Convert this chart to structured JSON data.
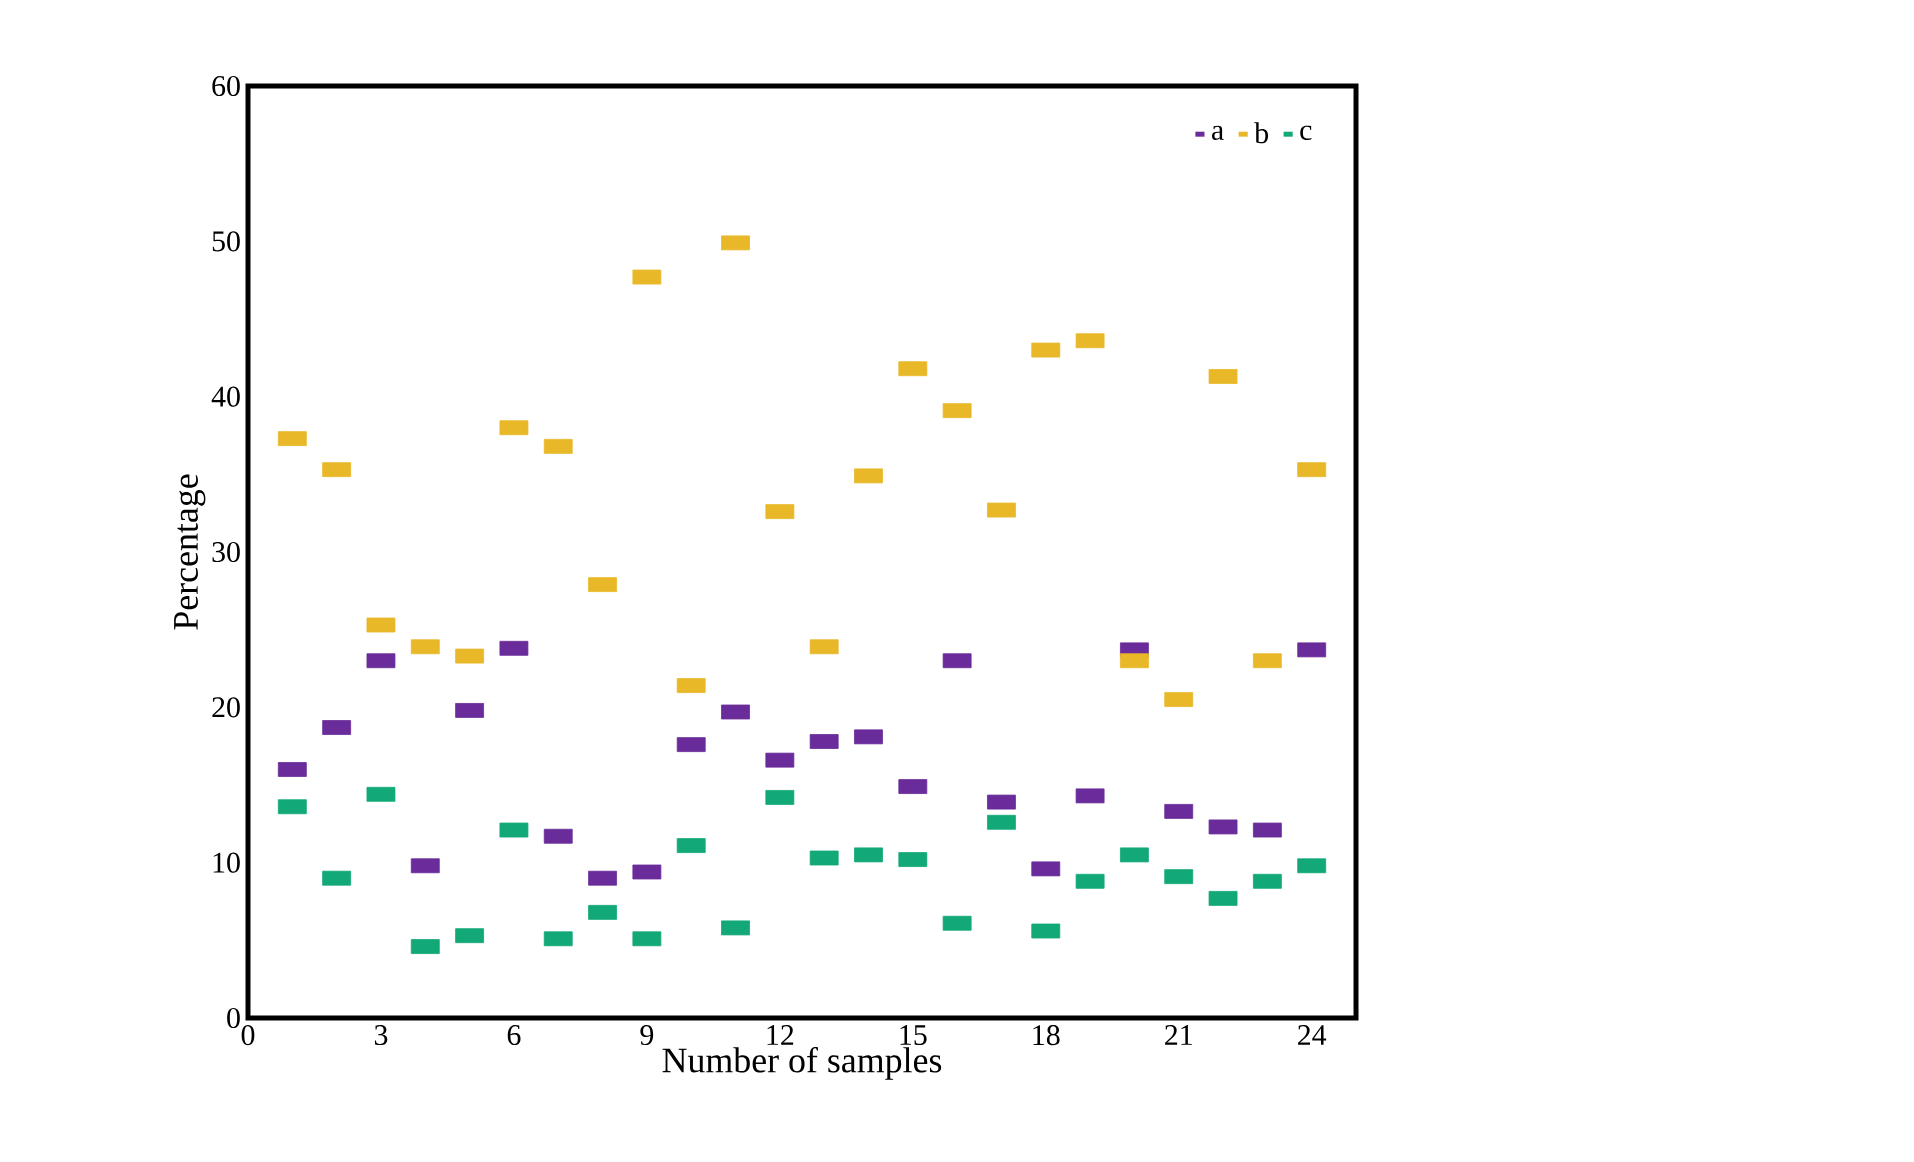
{
  "chart_data": {
    "type": "scatter",
    "xlabel": "Number of samples",
    "ylabel": "Percentage",
    "xlim": [
      0,
      25
    ],
    "xticks": [
      0,
      3,
      6,
      9,
      12,
      15,
      18,
      21,
      24
    ],
    "ylim": [
      0,
      60
    ],
    "yticks": [
      0,
      10,
      20,
      30,
      40,
      50,
      60
    ],
    "legend": "top right",
    "x": [
      1,
      2,
      3,
      4,
      5,
      6,
      7,
      8,
      9,
      10,
      11,
      12,
      13,
      14,
      15,
      16,
      17,
      18,
      19,
      20,
      21,
      22,
      23,
      24
    ],
    "series": [
      {
        "name": "a",
        "color": "#6a2c9a",
        "values": [
          16.0,
          18.7,
          23.0,
          9.8,
          19.8,
          23.8,
          11.7,
          9.0,
          9.4,
          17.6,
          19.7,
          16.6,
          17.8,
          18.1,
          14.9,
          23.0,
          13.9,
          9.6,
          14.3,
          23.7,
          13.3,
          12.3,
          12.1,
          23.7
        ]
      },
      {
        "name": "b",
        "color": "#e8b828",
        "values": [
          37.3,
          35.3,
          25.3,
          23.9,
          23.3,
          38.0,
          36.8,
          27.9,
          47.7,
          21.4,
          49.9,
          32.6,
          23.9,
          34.9,
          41.8,
          39.1,
          32.7,
          43.0,
          43.6,
          23.0,
          20.5,
          41.3,
          23.0,
          35.3
        ]
      },
      {
        "name": "c",
        "color": "#12a878",
        "values": [
          13.6,
          9.0,
          14.4,
          4.6,
          5.3,
          12.1,
          5.1,
          6.8,
          5.1,
          11.1,
          5.8,
          14.2,
          10.3,
          10.5,
          10.2,
          6.1,
          12.6,
          5.6,
          8.8,
          10.5,
          9.1,
          7.7,
          8.8,
          9.8
        ]
      }
    ]
  }
}
